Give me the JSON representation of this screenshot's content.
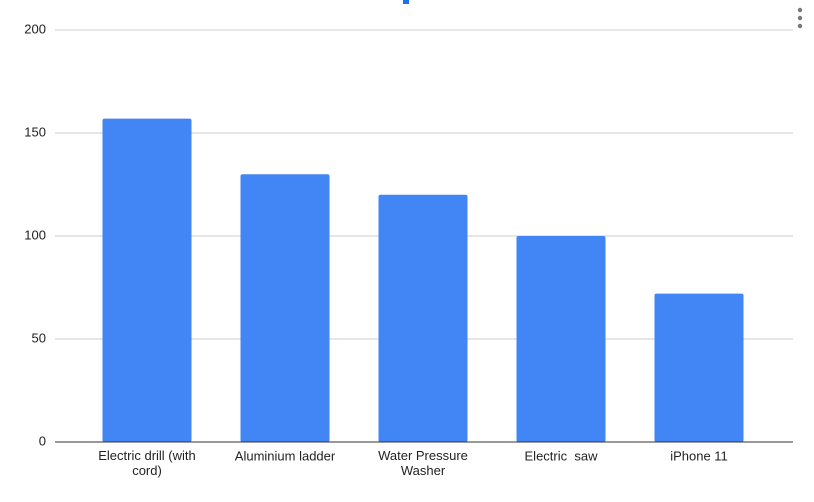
{
  "chart_data": {
    "type": "bar",
    "categories": [
      "Electric drill (with cord)",
      "Aluminium ladder",
      "Water Pressure Washer",
      "Electric  saw",
      "iPhone 11"
    ],
    "values": [
      157,
      130,
      120,
      100,
      72
    ],
    "color": "#4285f4",
    "ylim": [
      0,
      200
    ],
    "yticks": [
      0,
      50,
      100,
      150,
      200
    ],
    "grid": true
  }
}
